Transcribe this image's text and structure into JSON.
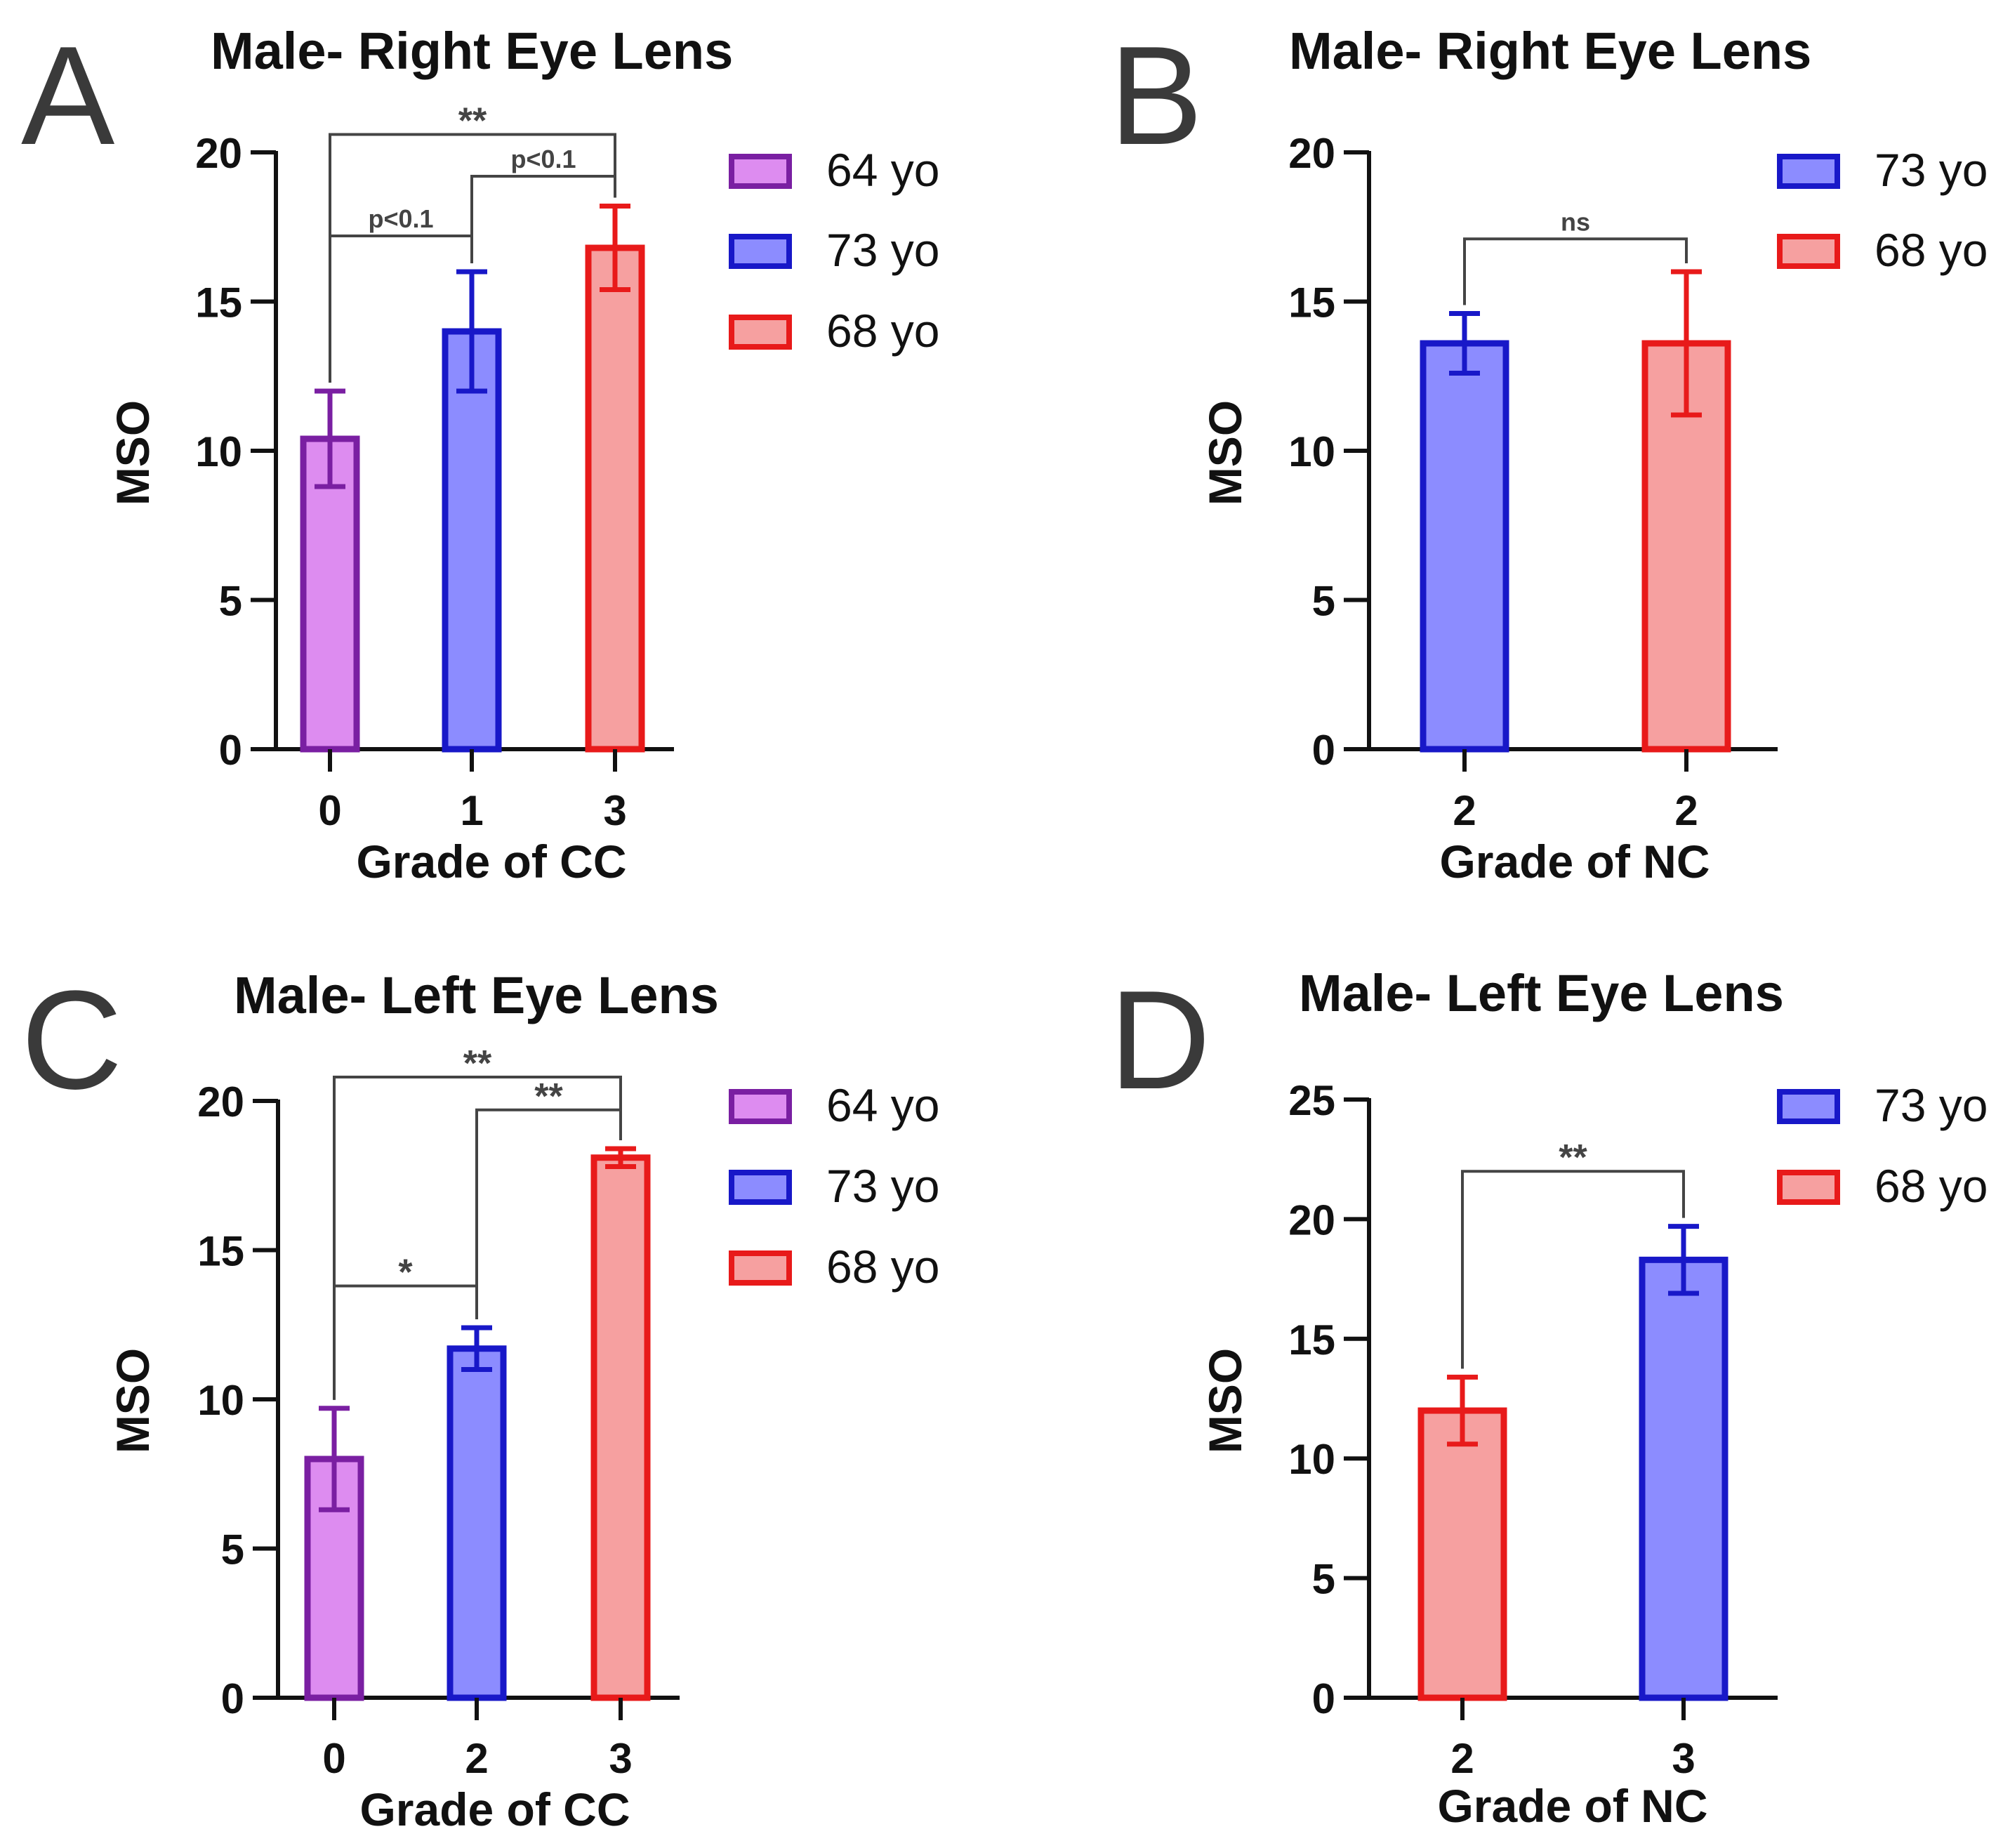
{
  "figure": {
    "colors": {
      "purple_edge": "#7A1FA2",
      "purple_fill": "#DD8CF0",
      "blue_edge": "#1818C8",
      "blue_fill": "#8C8CFF",
      "red_edge": "#E81A1A",
      "red_fill": "#F6A0A0",
      "axis": "#111111",
      "annotation": "#444444",
      "panel_letter": "#3A3A3A"
    }
  },
  "chart_data": [
    {
      "panel_letter": "A",
      "type": "bar",
      "title": "Male- Right Eye Lens",
      "xlabel": "Grade of CC",
      "ylabel": "MSO",
      "ylim": [
        0,
        20
      ],
      "yticks": [
        "0",
        "5",
        "10",
        "15",
        "20"
      ],
      "categories": [
        "0",
        "1",
        "3"
      ],
      "values": [
        10.4,
        14.0,
        16.8
      ],
      "errors": [
        1.6,
        2.0,
        1.4
      ],
      "bar_colors": [
        "purple",
        "blue",
        "red"
      ],
      "legend": [
        {
          "label": "64 yo",
          "color": "purple"
        },
        {
          "label": "73 yo",
          "color": "blue"
        },
        {
          "label": "68 yo",
          "color": "red"
        }
      ],
      "legend_position": "right",
      "grid": false,
      "significance": [
        {
          "from": 0,
          "to": 1,
          "label": "p<0.1",
          "y": 17.2
        },
        {
          "from": 1,
          "to": 2,
          "label": "p<0.1",
          "y": 19.2
        },
        {
          "from": 0,
          "to": 2,
          "label": "**",
          "y": 20.6
        }
      ]
    },
    {
      "panel_letter": "B",
      "type": "bar",
      "title": "Male- Right Eye Lens",
      "xlabel": "Grade of NC",
      "ylabel": "MSO",
      "ylim": [
        0,
        20
      ],
      "yticks": [
        "0",
        "5",
        "10",
        "15",
        "20"
      ],
      "categories": [
        "2",
        "2"
      ],
      "values": [
        13.6,
        13.6
      ],
      "errors": [
        1.0,
        2.4
      ],
      "bar_colors": [
        "blue",
        "red"
      ],
      "legend": [
        {
          "label": "73 yo",
          "color": "blue"
        },
        {
          "label": "68 yo",
          "color": "red"
        }
      ],
      "legend_position": "right",
      "grid": false,
      "significance": [
        {
          "from": 0,
          "to": 1,
          "label": "ns",
          "y": 17.1
        }
      ]
    },
    {
      "panel_letter": "C",
      "type": "bar",
      "title": "Male- Left Eye Lens",
      "xlabel": "Grade of CC",
      "ylabel": "MSO",
      "ylim": [
        0,
        20
      ],
      "yticks": [
        "0",
        "5",
        "10",
        "15",
        "20"
      ],
      "categories": [
        "0",
        "2",
        "3"
      ],
      "values": [
        8.0,
        11.7,
        18.1
      ],
      "errors": [
        1.7,
        0.7,
        0.3
      ],
      "bar_colors": [
        "purple",
        "blue",
        "red"
      ],
      "legend": [
        {
          "label": "64 yo",
          "color": "purple"
        },
        {
          "label": "73 yo",
          "color": "blue"
        },
        {
          "label": "68 yo",
          "color": "red"
        }
      ],
      "legend_position": "right",
      "grid": false,
      "significance": [
        {
          "from": 0,
          "to": 1,
          "label": "*",
          "y": 13.8
        },
        {
          "from": 1,
          "to": 2,
          "label": "**",
          "y": 19.7
        },
        {
          "from": 0,
          "to": 2,
          "label": "**",
          "y": 20.8
        }
      ]
    },
    {
      "panel_letter": "D",
      "type": "bar",
      "title": "Male- Left Eye Lens",
      "xlabel": "Grade of NC",
      "ylabel": "MSO",
      "ylim": [
        0,
        25
      ],
      "yticks": [
        "0",
        "5",
        "10",
        "15",
        "20",
        "25"
      ],
      "categories": [
        "2",
        "3"
      ],
      "values": [
        12.0,
        18.3
      ],
      "errors": [
        1.4,
        1.4
      ],
      "bar_colors": [
        "red",
        "blue"
      ],
      "legend": [
        {
          "label": "73 yo",
          "color": "blue"
        },
        {
          "label": "68 yo",
          "color": "red"
        }
      ],
      "legend_position": "right",
      "grid": false,
      "significance": [
        {
          "from": 0,
          "to": 1,
          "label": "**",
          "y": 22.0
        }
      ]
    }
  ]
}
